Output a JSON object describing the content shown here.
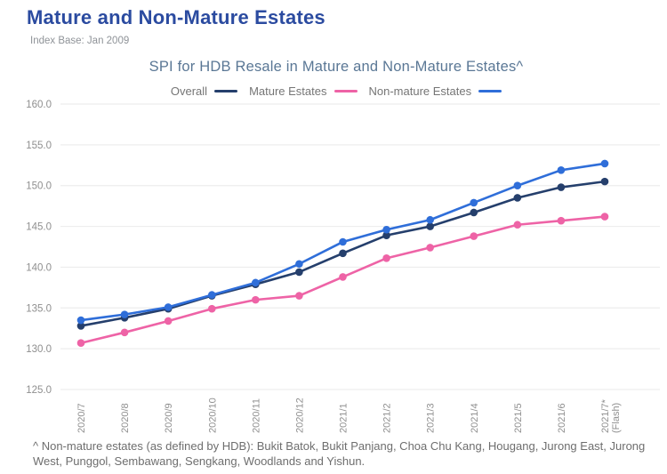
{
  "page": {
    "title": "Mature and Non-Mature Estates",
    "subtitle": "Index Base: Jan 2009"
  },
  "chart_data": {
    "type": "line",
    "title": "SPI for HDB Resale in Mature and Non-Mature Estates^",
    "categories": [
      "2020/7",
      "2020/8",
      "2020/9",
      "2020/10",
      "2020/11",
      "2020/12",
      "2021/1",
      "2021/2",
      "2021/3",
      "2021/4",
      "2021/5",
      "2021/6",
      "2021/7*\n(Flash)"
    ],
    "series": [
      {
        "name": "Overall",
        "color": "#253f6c",
        "values": [
          132.8,
          133.8,
          134.9,
          136.5,
          137.9,
          139.4,
          141.7,
          143.9,
          145.0,
          146.7,
          148.5,
          149.8,
          150.5
        ]
      },
      {
        "name": "Mature Estates",
        "color": "#ee63a6",
        "values": [
          130.7,
          132.0,
          133.4,
          134.9,
          136.0,
          136.5,
          138.8,
          141.1,
          142.4,
          143.8,
          145.2,
          145.7,
          146.2
        ]
      },
      {
        "name": "Non-mature Estates",
        "color": "#2f6ed9",
        "values": [
          133.5,
          134.2,
          135.1,
          136.6,
          138.1,
          140.4,
          143.1,
          144.6,
          145.8,
          147.9,
          150.0,
          151.9,
          152.7
        ]
      }
    ],
    "ylim": [
      125,
      160
    ],
    "ytick_labels": [
      "160.0",
      "155.0",
      "150.0",
      "145.0",
      "140.0",
      "135.0",
      "130.0",
      "125.0"
    ],
    "xlabel": "",
    "ylabel": "",
    "grid": "horizontal-only",
    "legend_position": "top",
    "marker": "circle"
  },
  "footnote": "^ Non-mature estates (as defined by HDB): Bukit Batok, Bukit Panjang, Choa Chu Kang, Hougang, Jurong East, Jurong West, Punggol, Sembawang, Sengkang, Woodlands and Yishun.",
  "colors": {
    "header_title": "#2b4ba0",
    "chart_title": "#5a7795",
    "legend_text": "#757575",
    "axis_text": "#8f8f8f",
    "gridline": "#ededed",
    "footnote_text": "#6e6e6e",
    "background": "#ffffff"
  }
}
